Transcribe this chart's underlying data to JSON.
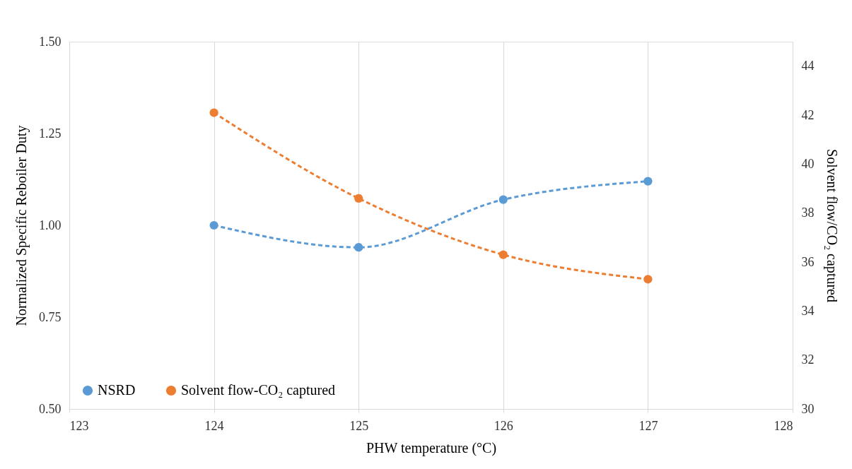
{
  "chart_data": {
    "type": "line",
    "xlabel": "PHW temperature (°C)",
    "ylabel": "Normalized Specific Reboiler Duty",
    "y2label": "Solvent flow/CO₂ captured",
    "x": [
      124,
      125,
      126,
      127
    ],
    "series": [
      {
        "name": "NSRD",
        "color": "#5b9bd5",
        "values": [
          1.0,
          0.94,
          1.07,
          1.12
        ],
        "line_style": "dashed"
      },
      {
        "name": "Solvent flow-CO₂ captured",
        "color": "#ed7d31",
        "values": [
          42.1,
          38.6,
          36.3,
          35.3
        ],
        "axis": "y2",
        "line_style": "dashed"
      }
    ],
    "xlim": [
      123,
      128
    ],
    "xticks": [
      123,
      124,
      125,
      126,
      127,
      128
    ],
    "ylim": [
      0.5,
      1.5
    ],
    "yticks": [
      {
        "value": 0.5,
        "label": "0.50"
      },
      {
        "value": 0.75,
        "label": "0.75"
      },
      {
        "value": 1.0,
        "label": "1.00"
      },
      {
        "value": 1.25,
        "label": "1.25"
      },
      {
        "value": 1.5,
        "label": "1.50"
      }
    ],
    "y2lim": [
      30,
      45
    ],
    "y2ticks": [
      30,
      32,
      34,
      36,
      38,
      40,
      42,
      44
    ],
    "grid": "x",
    "legend": "bottom left",
    "marker": "circle"
  }
}
